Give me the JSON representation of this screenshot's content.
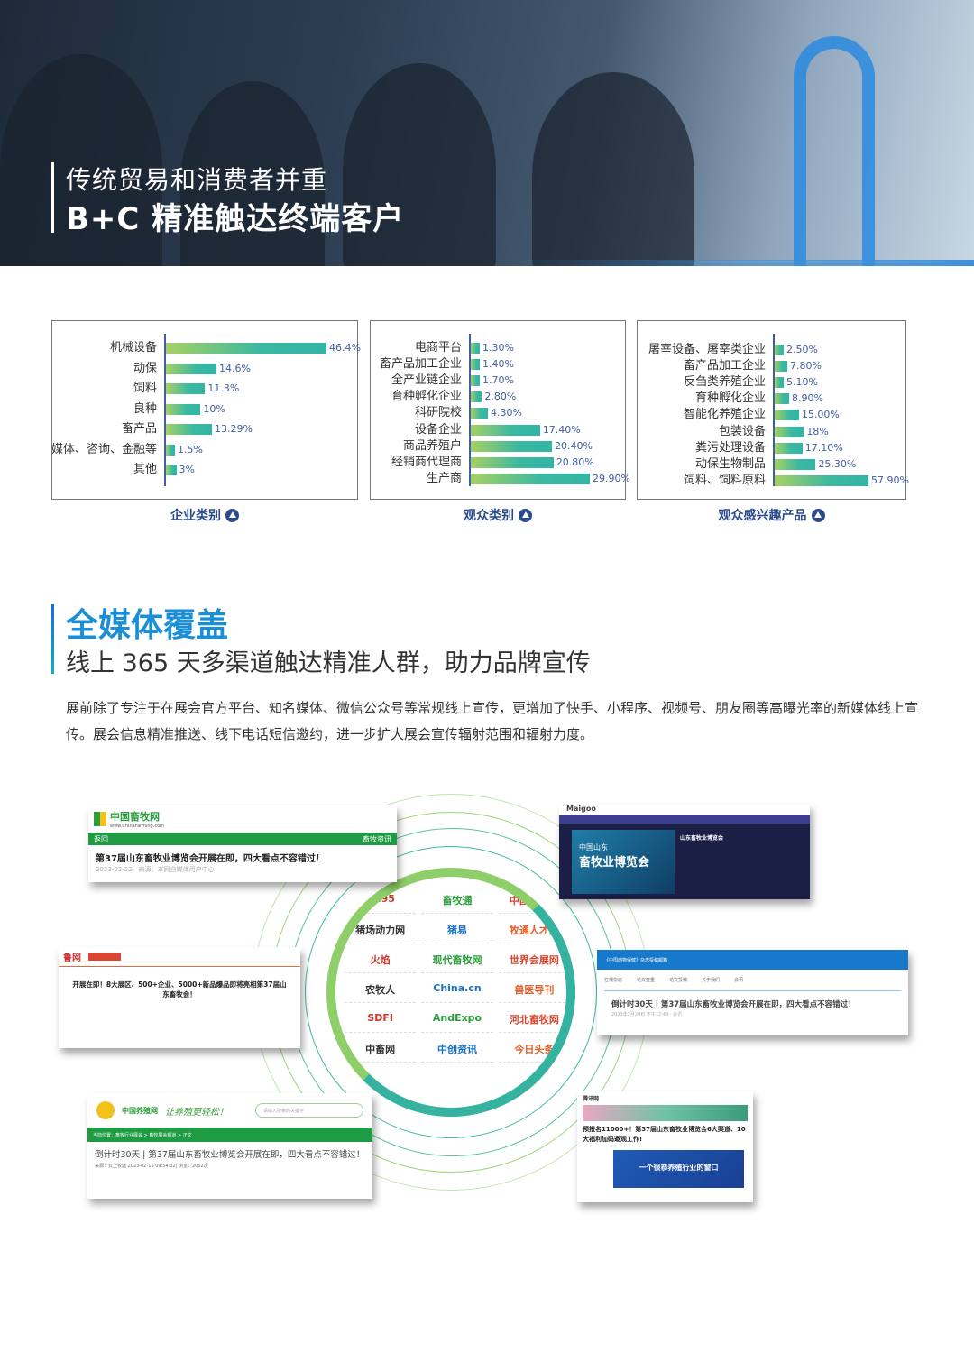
{
  "hero": {
    "line1": "传统贸易和消费者并重",
    "line2": "B+C 精准触达终端客户"
  },
  "colors": {
    "accent_blue": "#1a8fd6",
    "caption_navy": "#2b4a8c",
    "bar_start": "#a7d163",
    "bar_end": "#33b5a6",
    "value_text": "#3f5ea6"
  },
  "chart_data": [
    {
      "type": "bar",
      "orientation": "horizontal",
      "title": "企业类别",
      "categories": [
        "机械设备",
        "动保",
        "饲料",
        "良种",
        "畜产品",
        "媒体、咨询、金融等",
        "其他"
      ],
      "values": [
        46.4,
        14.6,
        11.3,
        10,
        13.29,
        1.5,
        3
      ],
      "labels": [
        "46.4%",
        "14.6%",
        "11.3%",
        "10%",
        "13.29%",
        "1.5%",
        "3%"
      ],
      "unit": "%"
    },
    {
      "type": "bar",
      "orientation": "horizontal",
      "title": "观众类别",
      "categories": [
        "电商平台",
        "畜产品加工企业",
        "全产业链企业",
        "育种孵化企业",
        "科研院校",
        "设备企业",
        "商品养殖户",
        "经销商代理商",
        "生产商"
      ],
      "values": [
        1.3,
        1.4,
        1.7,
        2.8,
        4.3,
        17.4,
        20.4,
        20.8,
        29.9
      ],
      "labels": [
        "1.30%",
        "1.40%",
        "1.70%",
        "2.80%",
        "4.30%",
        "17.40%",
        "20.40%",
        "20.80%",
        "29.90%"
      ],
      "unit": "%"
    },
    {
      "type": "bar",
      "orientation": "horizontal",
      "title": "观众感兴趣产品",
      "categories": [
        "屠宰设备、屠宰类企业",
        "畜产品加工企业",
        "反刍类养殖企业",
        "育种孵化企业",
        "智能化养殖企业",
        "包装设备",
        "粪污处理设备",
        "动保生物制品",
        "饲料、饲料原料"
      ],
      "values": [
        2.5,
        7.8,
        5.1,
        8.9,
        15,
        18,
        17.1,
        25.3,
        57.9
      ],
      "labels": [
        "2.50%",
        "7.80%",
        "5.10%",
        "8.90%",
        "15.00%",
        "18%",
        "17.10%",
        "25.30%",
        "57.90%"
      ],
      "unit": "%"
    }
  ],
  "media": {
    "title": "全媒体覆盖",
    "subtitle": "线上 365 天多渠道触达精准人群，助力品牌宣传",
    "paragraph": "展前除了专注于在展会官方平台、知名媒体、微信公众号等常规线上宣传，更增加了快手、小程序、视频号、朋友圈等高曝光率的新媒体线上宣传。展会信息精准推送、线下电话短信邀约，进一步扩大展会宣传辐射范围和辐射力度。"
  },
  "logos": [
    "SH95",
    "畜牧通",
    "中国养殖网",
    "猪场动力网",
    "猪易",
    "牧通人才网",
    "火焰",
    "现代畜牧网",
    "世界会展网",
    "农牧人",
    "China.cn",
    "兽医导刊",
    "SDFI",
    "AndExpo",
    "河北畜牧网",
    "中畜网",
    "中创资讯",
    "今日头条"
  ],
  "cards": {
    "c1": {
      "site": "中国畜牧网",
      "site_url": "www.ChinaFarming.com",
      "nav_back": "返回",
      "nav_cat": "畜牧资讯",
      "headline": "第37届山东畜牧业博览会开展在即，四大看点不容错过！",
      "meta": "2023-02-22　来源：本网自媒体用户中心"
    },
    "c2": {
      "site": "鲁网",
      "headline": "开展在即！8大展区、500+企业、5000+新品爆品即将亮相第37届山东畜牧会！"
    },
    "c3": {
      "site": "Maigoo",
      "banner_small": "中国山东",
      "banner_big": "畜牧业博览会",
      "info_title": "山东畜牧业博览会"
    },
    "c4": {
      "top": "《中国动物保健》杂志投稿邮箱",
      "nav": [
        "在线杂志",
        "论文查重",
        "论文投稿",
        "关于我们",
        "会讯"
      ],
      "headline": "倒计时30天 | 第37届山东畜牧业博览会开展在即，四大看点不容错过！",
      "meta": "2023年2月20日 下午12:49 · 会讯"
    },
    "c5": {
      "site": "中国养殖网",
      "slogan": "让养殖更轻松！",
      "search_placeholder": "请输入搜索的关键字",
      "breadcrumb": "当前位置：畜牧行业展会 > 畜牧展会报道 > 正文",
      "headline": "倒计时30天 | 第37届山东畜牧业博览会开展在即，四大看点不容错过！",
      "meta": "来源：云上牧迷 2023-02-15 09:54:32| 浏览：2052次"
    },
    "c6": {
      "site": "腾讯网",
      "headline": "预报名11000+！第37届山东畜牧业博览会6大渠道、10大福利加码邀观工作!",
      "banner": "一个很恭养殖行业的窗口"
    }
  }
}
